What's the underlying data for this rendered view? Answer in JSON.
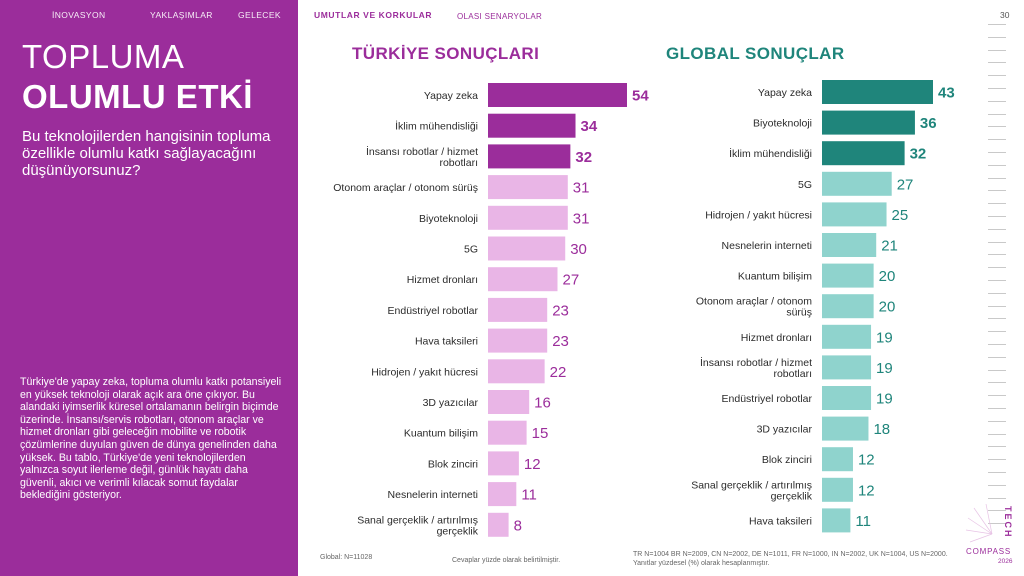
{
  "nav": {
    "items": [
      "İNOVASYON",
      "YAKLAŞIMLAR",
      "GELECEK"
    ],
    "active": "UMUTLAR VE KORKULAR",
    "next": "OLASI SENARYOLAR",
    "page_number": "30"
  },
  "left": {
    "title_line1": "TOPLUMA",
    "title_line2": "OLUMLU ETKİ",
    "question": "Bu teknolojilerden hangisinin topluma özellikle olumlu katkı sağlayacağını düşünüyorsunuz?",
    "summary": "Türkiye'de yapay zeka, topluma olumlu katkı potansiyeli en yüksek teknoloji olarak açık ara öne çıkıyor. Bu alandaki iyimserlik küresel ortalamanın belirgin biçimde üzerinde. İnsansı/servis robotları, otonom araçlar ve hizmet dronları gibi geleceğin mobilite ve robotik çözümlerine duyulan güven de dünya genelinden daha yüksek. Bu tablo, Türkiye'de yeni teknolojilerden yalnızca soyut ilerleme değil, günlük hayatı daha güvenli, akıcı ve verimli kılacak somut faydalar beklediğini gösteriyor."
  },
  "colors": {
    "panel": "#9b2d9b",
    "turkey_top": "#9b2d9b",
    "turkey_rest": "#e9b5e6",
    "turkey_label": "#9b2d9b",
    "global_top": "#1f857b",
    "global_rest": "#8fd3cd",
    "global_label": "#1f857b"
  },
  "chart_data": [
    {
      "type": "bar",
      "orientation": "horizontal",
      "title": "TÜRKİYE SONUÇLARI",
      "highlight_count": 3,
      "categories": [
        "Yapay zeka",
        "İklim mühendisliği",
        "İnsansı robotlar / hizmet robotları",
        "Otonom araçlar / otonom sürüş",
        "Biyoteknoloji",
        "5G",
        "Hizmet dronları",
        "Endüstriyel robotlar",
        "Hava taksileri",
        "Hidrojen / yakıt hücresi",
        "3D yazıcılar",
        "Kuantum bilişim",
        "Blok zinciri",
        "Nesnelerin interneti",
        "Sanal gerçeklik / artırılmış gerçeklik"
      ],
      "values": [
        54,
        34,
        32,
        31,
        31,
        30,
        27,
        23,
        23,
        22,
        16,
        15,
        12,
        11,
        8
      ],
      "value_labels": [
        "54",
        "34",
        "32",
        "31",
        "31",
        "30",
        "27",
        "23",
        "23",
        "22",
        "16",
        "15",
        "12",
        "11",
        "8"
      ],
      "unit": "%",
      "xlim": [
        0,
        54
      ]
    },
    {
      "type": "bar",
      "orientation": "horizontal",
      "title": "GLOBAL SONUÇLAR",
      "highlight_count": 3,
      "categories": [
        "Yapay zeka",
        "Biyoteknoloji",
        "İklim mühendisliği",
        "5G",
        "Hidrojen / yakıt hücresi",
        "Nesnelerin interneti",
        "Kuantum bilişim",
        "Otonom araçlar / otonom sürüş",
        "Hizmet dronları",
        "İnsansı robotlar / hizmet robotları",
        "Endüstriyel robotlar",
        "3D yazıcılar",
        "Blok zinciri",
        "Sanal gerçeklik / artırılmış gerçeklik",
        "Hava taksileri"
      ],
      "values": [
        43,
        36,
        32,
        27,
        25,
        21,
        20,
        20,
        19,
        19,
        19,
        18,
        12,
        12,
        11
      ],
      "value_labels": [
        "43",
        "36",
        "32",
        "27",
        "25",
        "21",
        "20",
        "20",
        "19",
        "19",
        "19",
        "18",
        "12",
        "12",
        "11"
      ],
      "unit": "%",
      "xlim": [
        0,
        43
      ]
    }
  ],
  "footnotes": {
    "global_n": "Global: N=11028",
    "percent_note": "Cevaplar yüzde olarak belirtilmiştir.",
    "country_n": "TR N=1004 BR N=2009, CN N=2002, DE N=1011, FR N=1000, IN N=2002, UK N=1004, US N=2000.",
    "calc_note": "Yanıtlar yüzdesel (%) olarak hesaplanmıştır."
  },
  "brand": {
    "tech": "TECH",
    "compass": "COMPASS",
    "year": "2026"
  }
}
